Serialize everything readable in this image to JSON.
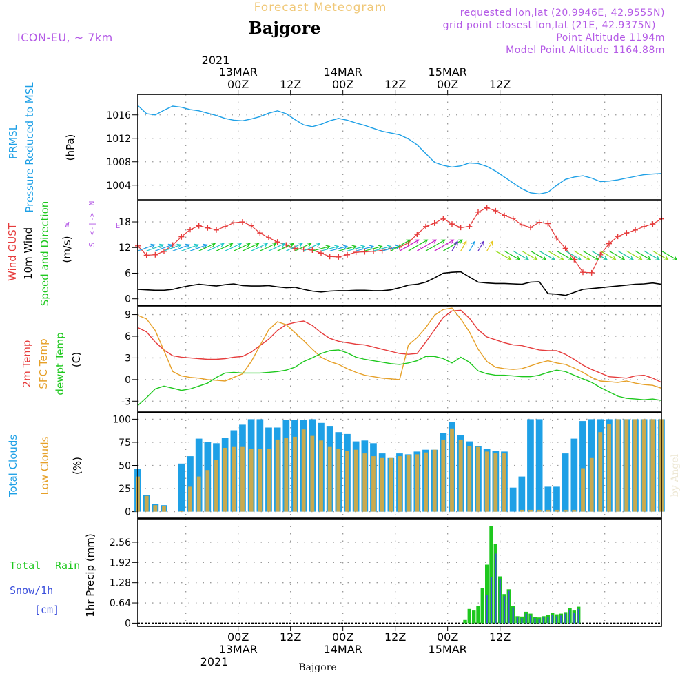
{
  "header": {
    "title": "Forecast Meteogram",
    "location": "Bajgore",
    "model": "ICON-EU, ~ 7km",
    "requested": "requested lon,lat (20.9946E, 42.9555N)",
    "grid": "grid point closest lon,lat (21E, 42.9375N)",
    "altitude": "Point Altitude 1194m",
    "model_altitude": "Model Point Altitude 1164.88m",
    "footer_location": "Bajgore",
    "credit": "by Angel"
  },
  "time_axis": {
    "year": "2021",
    "hours_range": [
      -23,
      97
    ],
    "labels": [
      {
        "h": 0,
        "hour": "00Z",
        "date": "13MAR"
      },
      {
        "h": 12,
        "hour": "12Z",
        "date": ""
      },
      {
        "h": 24,
        "hour": "00Z",
        "date": "14MAR"
      },
      {
        "h": 36,
        "hour": "12Z",
        "date": ""
      },
      {
        "h": 48,
        "hour": "00Z",
        "date": "15MAR"
      },
      {
        "h": 60,
        "hour": "12Z",
        "date": ""
      }
    ]
  },
  "colors": {
    "pressure": "#1ea0e6",
    "gust": "#e63c3c",
    "wind": "#000000",
    "temp2m": "#e63c3c",
    "sfc": "#e6a028",
    "dewpt": "#1ec81e",
    "total_cloud": "#1ea0e6",
    "low_cloud": "#c8aa50",
    "rain": "#1ec81e",
    "snow": "#3c50dc",
    "label_purple": "#b45ae6",
    "title_orange": "#f0c878"
  },
  "panel_labels": {
    "p1": [
      "PRMSL",
      "Pressure Reduced to MSL",
      "(hPa)"
    ],
    "p2": [
      "Wind GUST",
      "10m Wind",
      "Speed and Direction",
      "(m/s)"
    ],
    "p2_compass": [
      "N",
      "W",
      "E",
      "S"
    ],
    "p3": [
      "2m Temp",
      "SFC Temp",
      "dewpt Temp",
      "(C)"
    ],
    "p4": [
      "Total Clouds",
      "Low Clouds",
      "(%)"
    ],
    "p5": [
      "Total",
      "Rain",
      "Snow/1h",
      "[cm]",
      "1hr Precip (mm)"
    ]
  },
  "chart_data": [
    {
      "type": "line",
      "title": "PRMSL Pressure Reduced to MSL",
      "ylabel": "(hPa)",
      "ylim": [
        1001.5,
        1019.5
      ],
      "yticks": [
        1004,
        1008,
        1012,
        1016
      ],
      "x": [
        -23,
        -21,
        -19,
        -17,
        -15,
        -13,
        -11,
        -9,
        -7,
        -5,
        -3,
        -1,
        1,
        3,
        5,
        7,
        9,
        11,
        13,
        15,
        17,
        19,
        21,
        23,
        25,
        27,
        29,
        31,
        33,
        35,
        37,
        39,
        41,
        43,
        45,
        47,
        49,
        51,
        53,
        55,
        57,
        59,
        61,
        63,
        65,
        67,
        69,
        71,
        73,
        75,
        77,
        79,
        81,
        83,
        85,
        87,
        89,
        91,
        93,
        95,
        97
      ],
      "series": [
        {
          "name": "PRMSL",
          "values": [
            1017.6,
            1016.2,
            1016.0,
            1016.8,
            1017.5,
            1017.3,
            1016.9,
            1016.7,
            1016.3,
            1015.9,
            1015.4,
            1015.1,
            1015.0,
            1015.3,
            1015.7,
            1016.3,
            1016.7,
            1016.2,
            1015.2,
            1014.3,
            1014.0,
            1014.4,
            1015.0,
            1015.4,
            1015.1,
            1014.6,
            1014.2,
            1013.7,
            1013.2,
            1012.9,
            1012.6,
            1011.9,
            1010.9,
            1009.4,
            1007.9,
            1007.4,
            1007.1,
            1007.3,
            1007.8,
            1007.7,
            1007.2,
            1006.4,
            1005.4,
            1004.4,
            1003.4,
            1002.7,
            1002.5,
            1002.8,
            1004.0,
            1005.0,
            1005.4,
            1005.6,
            1005.2,
            1004.6,
            1004.7,
            1004.9,
            1005.2,
            1005.5,
            1005.8,
            1005.9,
            1006.0
          ]
        }
      ]
    },
    {
      "type": "line",
      "title": "Wind GUST / 10m Wind Speed and Direction",
      "ylabel": "(m/s)",
      "ylim": [
        -1.5,
        23
      ],
      "yticks": [
        0,
        6,
        12,
        18
      ],
      "x": [
        -23,
        -21,
        -19,
        -17,
        -15,
        -13,
        -11,
        -9,
        -7,
        -5,
        -3,
        -1,
        1,
        3,
        5,
        7,
        9,
        11,
        13,
        15,
        17,
        19,
        21,
        23,
        25,
        27,
        29,
        31,
        33,
        35,
        37,
        39,
        41,
        43,
        45,
        47,
        49,
        51,
        53,
        55,
        57,
        59,
        61,
        63,
        65,
        67,
        69,
        71,
        73,
        75,
        77,
        79,
        81,
        83,
        85,
        87,
        89,
        91,
        93,
        95,
        97
      ],
      "series": [
        {
          "name": "Wind GUST",
          "values": [
            12.4,
            10.2,
            10.3,
            11.1,
            12.6,
            14.5,
            16.2,
            17.1,
            16.6,
            16.1,
            16.9,
            17.8,
            18.0,
            17.1,
            15.4,
            14.3,
            13.3,
            12.6,
            11.8,
            11.6,
            11.4,
            10.7,
            9.9,
            9.8,
            10.3,
            10.9,
            11.0,
            11.1,
            11.3,
            11.8,
            12.1,
            13.1,
            15.1,
            16.9,
            17.7,
            18.8,
            17.5,
            16.7,
            16.9,
            20.3,
            21.3,
            20.6,
            19.5,
            18.8,
            17.3,
            16.7,
            17.9,
            17.6,
            14.2,
            11.8,
            9.2,
            6.2,
            6.1,
            10.3,
            12.9,
            14.6,
            15.4,
            16.1,
            16.9,
            17.5,
            18.7
          ]
        },
        {
          "name": "10m Wind",
          "values": [
            2.2,
            2.1,
            2.0,
            2.0,
            2.2,
            2.7,
            3.1,
            3.4,
            3.2,
            3.0,
            3.3,
            3.5,
            3.1,
            3.0,
            3.0,
            3.1,
            2.8,
            2.6,
            2.7,
            2.2,
            1.8,
            1.6,
            1.8,
            1.9,
            1.9,
            2.0,
            2.0,
            1.9,
            1.9,
            2.1,
            2.6,
            3.2,
            3.4,
            3.9,
            4.9,
            6.0,
            6.2,
            6.3,
            5.1,
            3.9,
            3.7,
            3.6,
            3.6,
            3.5,
            3.4,
            3.9,
            4.0,
            1.2,
            1.1,
            0.8,
            1.5,
            2.2,
            2.4,
            2.6,
            2.8,
            3.0,
            3.2,
            3.4,
            3.5,
            3.7,
            3.4
          ]
        }
      ]
    },
    {
      "type": "line",
      "title": "2m Temp / SFC Temp / dewpt Temp",
      "ylabel": "(C)",
      "ylim": [
        -4.5,
        10.2
      ],
      "yticks": [
        -3,
        0,
        3,
        6,
        9
      ],
      "x": [
        -23,
        -21,
        -19,
        -17,
        -15,
        -13,
        -11,
        -9,
        -7,
        -5,
        -3,
        -1,
        1,
        3,
        5,
        7,
        9,
        11,
        13,
        15,
        17,
        19,
        21,
        23,
        25,
        27,
        29,
        31,
        33,
        35,
        37,
        39,
        41,
        43,
        45,
        47,
        49,
        51,
        53,
        55,
        57,
        59,
        61,
        63,
        65,
        67,
        69,
        71,
        73,
        75,
        77,
        79,
        81,
        83,
        85,
        87,
        89,
        91,
        93,
        95,
        97
      ],
      "series": [
        {
          "name": "2m Temp",
          "values": [
            7.2,
            6.6,
            5.2,
            4.1,
            3.3,
            3.1,
            3.0,
            2.9,
            2.8,
            2.8,
            2.9,
            3.1,
            3.2,
            3.8,
            4.7,
            5.6,
            6.8,
            7.6,
            7.9,
            8.1,
            7.5,
            6.5,
            5.7,
            5.3,
            5.1,
            4.9,
            4.8,
            4.5,
            4.2,
            3.9,
            3.6,
            3.5,
            3.6,
            5.2,
            6.9,
            8.6,
            9.5,
            9.6,
            8.5,
            6.9,
            5.9,
            5.5,
            5.1,
            4.8,
            4.7,
            4.4,
            4.1,
            4.0,
            4.0,
            3.5,
            2.8,
            2.0,
            1.4,
            0.9,
            0.4,
            0.3,
            0.2,
            0.5,
            0.6,
            0.2,
            -0.4
          ]
        },
        {
          "name": "SFC Temp",
          "values": [
            8.9,
            8.4,
            6.8,
            4.0,
            1.1,
            0.5,
            0.3,
            0.2,
            0.0,
            -0.1,
            -0.2,
            0.3,
            0.8,
            2.5,
            4.7,
            6.9,
            8.0,
            7.6,
            6.5,
            5.4,
            4.2,
            3.1,
            2.5,
            2.1,
            1.5,
            1.0,
            0.6,
            0.4,
            0.2,
            0.1,
            0.0,
            4.8,
            5.8,
            7.2,
            8.9,
            9.7,
            9.9,
            8.4,
            6.6,
            4.2,
            2.5,
            1.7,
            1.5,
            1.4,
            1.5,
            1.9,
            2.3,
            2.6,
            2.3,
            2.1,
            1.6,
            1.0,
            0.3,
            -0.2,
            -0.3,
            -0.4,
            -0.2,
            -0.5,
            -0.7,
            -0.8,
            -1.2
          ]
        },
        {
          "name": "dewpt Temp",
          "values": [
            -3.6,
            -2.5,
            -1.3,
            -0.9,
            -1.2,
            -1.5,
            -1.3,
            -0.9,
            -0.5,
            0.3,
            0.9,
            1.0,
            0.9,
            0.9,
            0.9,
            1.0,
            1.1,
            1.3,
            1.7,
            2.5,
            3.0,
            3.6,
            4.0,
            4.1,
            3.7,
            3.1,
            2.8,
            2.6,
            2.4,
            2.2,
            2.1,
            2.3,
            2.6,
            3.2,
            3.2,
            2.9,
            2.3,
            3.1,
            2.4,
            1.2,
            0.8,
            0.6,
            0.6,
            0.5,
            0.4,
            0.4,
            0.6,
            1.0,
            1.3,
            1.1,
            0.6,
            0.1,
            -0.4,
            -1.1,
            -1.7,
            -2.3,
            -2.6,
            -2.7,
            -2.8,
            -2.7,
            -2.9
          ]
        }
      ]
    },
    {
      "type": "bar",
      "title": "Total Clouds / Low Clouds",
      "ylabel": "(%)",
      "ylim": [
        -7,
        107
      ],
      "yticks": [
        0,
        25,
        50,
        75,
        100
      ],
      "x": [
        -23,
        -21,
        -19,
        -17,
        -15,
        -13,
        -11,
        -9,
        -7,
        -5,
        -3,
        -1,
        1,
        3,
        5,
        7,
        9,
        11,
        13,
        15,
        17,
        19,
        21,
        23,
        25,
        27,
        29,
        31,
        33,
        35,
        37,
        39,
        41,
        43,
        45,
        47,
        49,
        51,
        53,
        55,
        57,
        59,
        61,
        63,
        65,
        67,
        69,
        71,
        73,
        75,
        77,
        79,
        81,
        83,
        85,
        87,
        89,
        91,
        93,
        95,
        97
      ],
      "series": [
        {
          "name": "Total Clouds",
          "values": [
            46,
            18,
            8,
            7,
            0,
            52,
            60,
            79,
            75,
            74,
            80,
            88,
            94,
            100,
            100,
            91,
            91,
            99,
            99,
            99,
            100,
            96,
            92,
            86,
            84,
            76,
            77,
            74,
            63,
            58,
            63,
            62,
            65,
            67,
            67,
            85,
            97,
            83,
            76,
            71,
            68,
            66,
            65,
            26,
            38,
            100,
            100,
            27,
            27,
            63,
            79,
            98,
            100,
            100,
            100,
            100,
            100,
            100,
            100,
            100,
            100
          ]
        },
        {
          "name": "Low Clouds",
          "values": [
            38,
            17,
            7,
            6,
            0,
            1,
            27,
            38,
            45,
            56,
            69,
            70,
            70,
            68,
            68,
            68,
            78,
            80,
            81,
            89,
            82,
            77,
            70,
            68,
            66,
            67,
            63,
            60,
            58,
            58,
            60,
            61,
            62,
            64,
            67,
            78,
            90,
            78,
            71,
            70,
            65,
            63,
            63,
            0,
            2,
            2,
            2,
            2,
            2,
            2,
            2,
            47,
            58,
            86,
            95,
            100,
            100,
            100,
            100,
            100,
            100
          ]
        }
      ]
    },
    {
      "type": "bar",
      "title": "1hr Precip (mm)",
      "ylabel": "1hr Precip (mm)",
      "ylim": [
        -0.1,
        3.3
      ],
      "yticks": [
        0,
        0.64,
        1.28,
        1.92,
        2.56
      ],
      "x": [
        52,
        53,
        54,
        55,
        56,
        57,
        58,
        59,
        60,
        61,
        62,
        63,
        64,
        65,
        66,
        67,
        68,
        69,
        70,
        71,
        72,
        73,
        74,
        75,
        76,
        77,
        78
      ],
      "series": [
        {
          "name": "Total Rain",
          "values": [
            0.1,
            0.45,
            0.4,
            0.55,
            1.1,
            1.85,
            3.07,
            2.5,
            1.48,
            0.92,
            1.07,
            0.55,
            0.22,
            0.21,
            0.36,
            0.3,
            0.2,
            0.18,
            0.22,
            0.25,
            0.32,
            0.28,
            0.3,
            0.35,
            0.48,
            0.4,
            0.52
          ]
        },
        {
          "name": "Snow/1h",
          "values": [
            0.0,
            0.0,
            0.0,
            0.0,
            0.0,
            0.9,
            1.45,
            2.2,
            1.4,
            0.86,
            1.02,
            0.5,
            0.18,
            0.16,
            0.3,
            0.24,
            0.16,
            0.14,
            0.18,
            0.2,
            0.26,
            0.22,
            0.24,
            0.3,
            0.4,
            0.33,
            0.45
          ]
        }
      ]
    }
  ]
}
